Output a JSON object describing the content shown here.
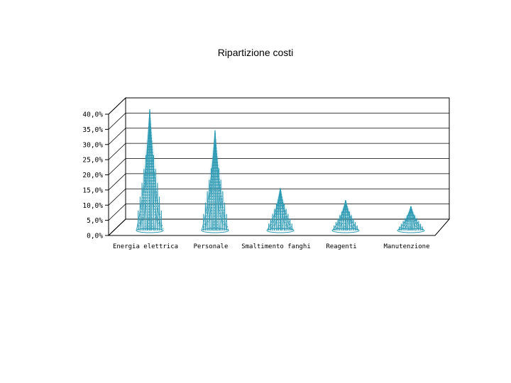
{
  "chart_data": {
    "type": "bar",
    "title": "Ripartizione costi",
    "categories": [
      "Energia elettrica",
      "Personale",
      "Smaltimento fanghi",
      "Reagenti",
      "Manutenzione"
    ],
    "values": [
      40.0,
      33.0,
      14.0,
      10.0,
      8.0
    ],
    "ylim": [
      0,
      40
    ],
    "yticks": [
      "0,0%",
      "5,0%",
      "10,0%",
      "15,0%",
      "20,0%",
      "25,0%",
      "30,0%",
      "35,0%",
      "40,0%"
    ],
    "xlabel": "",
    "ylabel": "",
    "grid": true,
    "legend": "none",
    "style": "3d-cone",
    "bar_color": "#2f9bb4"
  }
}
